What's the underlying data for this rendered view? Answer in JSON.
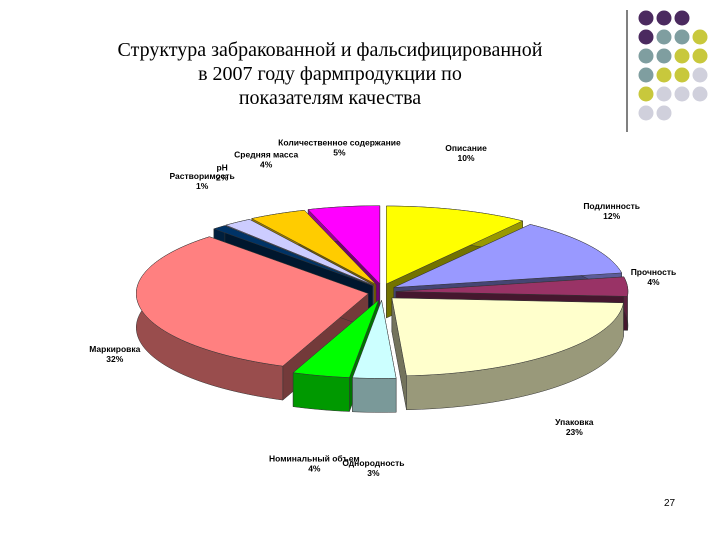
{
  "chart_data": {
    "type": "pie",
    "title": "Структура забракованной и фальсифицированной в 2007 году фармпродукции по показателям качества",
    "categories": [
      "Описание",
      "Подлинность",
      "Прочность",
      "Упаковка",
      "Однородность",
      "Номинальный объем",
      "Маркировка",
      "Растворимость",
      "pH",
      "Средняя масса",
      "Количественное содержание"
    ],
    "values": [
      10,
      12,
      4,
      23,
      3,
      4,
      32,
      1,
      2,
      4,
      5
    ],
    "value_labels": [
      "10%",
      "12%",
      "4%",
      "23%",
      "3%",
      "4%",
      "32%",
      "1%",
      "2%",
      "4%",
      "5%"
    ],
    "colors": [
      "#ffff00",
      "#9999ff",
      "#993366",
      "#ffffcc",
      "#ccffff",
      "#00ff00",
      "#ff8080",
      "#003366",
      "#ccccff",
      "#ffcc00",
      "#ff00ff"
    ]
  },
  "page_number": "27"
}
